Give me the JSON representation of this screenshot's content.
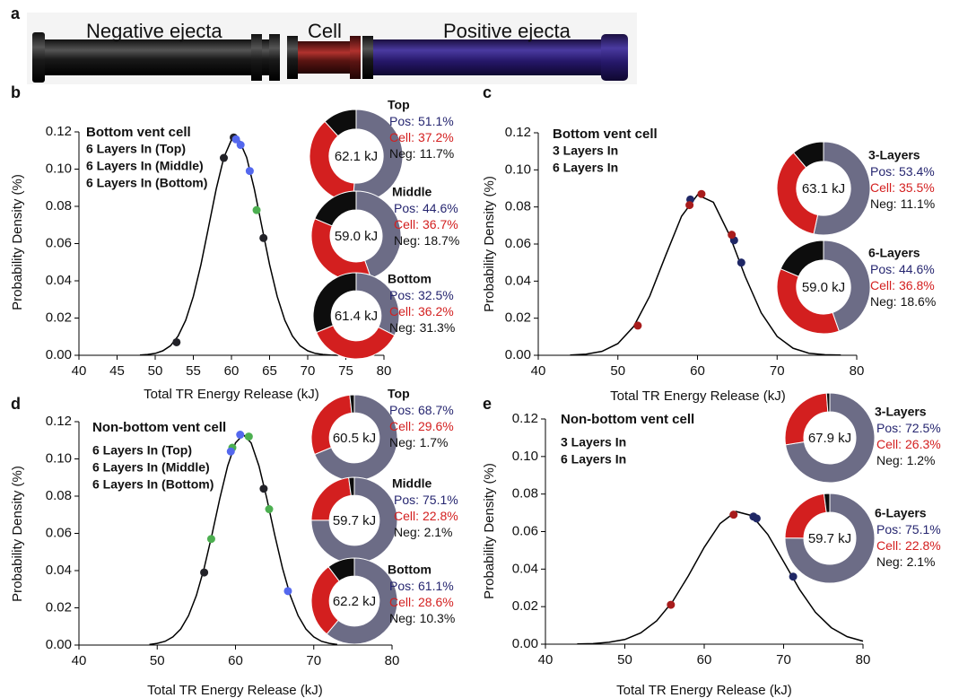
{
  "panel_a": {
    "label": "a",
    "negative": "Negative ejecta",
    "cell": "Cell",
    "positive": "Positive ejecta"
  },
  "chart_data": [
    {
      "panel": "b",
      "type": "line",
      "title": "Bottom vent cell",
      "xlabel": "Total TR Energy Release (kJ)",
      "ylabel": "Probability Density (%)",
      "xlim": [
        40,
        80
      ],
      "ylim": [
        0,
        0.12
      ],
      "xticks": [
        40,
        45,
        50,
        55,
        60,
        65,
        70,
        75,
        80
      ],
      "yticks": [
        {
          "value": 0,
          "label": "0.00"
        },
        0.02,
        0.04,
        0.06,
        0.08,
        {
          "value": 0.1,
          "label": "0.10"
        },
        0.12
      ],
      "curve": {
        "color": "#000000",
        "x": [
          48,
          49,
          50,
          51,
          52,
          53,
          54,
          55,
          56,
          57,
          58,
          59,
          60,
          61,
          62,
          63,
          64,
          65,
          66,
          67,
          68,
          69,
          70,
          71,
          72,
          73,
          74
        ],
        "values": [
          0.0001,
          0.0004,
          0.001,
          0.0024,
          0.0051,
          0.0103,
          0.0188,
          0.0316,
          0.0487,
          0.0689,
          0.0893,
          0.1062,
          0.1157,
          0.1157,
          0.1062,
          0.0893,
          0.0689,
          0.0487,
          0.0316,
          0.0188,
          0.0103,
          0.0051,
          0.0024,
          0.001,
          0.0004,
          0.0001,
          0
        ]
      },
      "series": [
        {
          "name": "6 Layers In (Top)",
          "color": "#4caf50",
          "x": [
            63.3
          ],
          "values": [
            0.078
          ]
        },
        {
          "name": "6 Layers In (Middle)",
          "color": "#222228",
          "x": [
            52.8,
            59.0,
            60.3,
            64.2
          ],
          "values": [
            0.007,
            0.106,
            0.117,
            0.063
          ]
        },
        {
          "name": "6 Layers In (Bottom)",
          "color": "#5468ee",
          "x": [
            60.6,
            61.2,
            62.4
          ],
          "values": [
            0.116,
            0.113,
            0.099
          ]
        }
      ],
      "donuts": [
        {
          "type": "pie",
          "title": "Top",
          "center_label": "62.1 kJ",
          "categories": [
            "Pos:",
            "Cell:",
            "Neg:"
          ],
          "values": [
            51.1,
            37.2,
            11.7
          ],
          "value_labels": [
            "51.1%",
            "37.2%",
            "11.7%"
          ],
          "colors": [
            "#6c6c86",
            "#d31f1f",
            "#0d0d0d"
          ],
          "label_colors": [
            "#262670",
            "#d31f1f",
            "#111111"
          ]
        },
        {
          "type": "pie",
          "title": "Middle",
          "center_label": "59.0 kJ",
          "categories": [
            "Pos:",
            "Cell:",
            "Neg:"
          ],
          "values": [
            44.6,
            36.7,
            18.7
          ],
          "value_labels": [
            "44.6%",
            "36.7%",
            "18.7%"
          ],
          "colors": [
            "#6c6c86",
            "#d31f1f",
            "#0d0d0d"
          ],
          "label_colors": [
            "#262670",
            "#d31f1f",
            "#111111"
          ]
        },
        {
          "type": "pie",
          "title": "Bottom",
          "center_label": "61.4 kJ",
          "categories": [
            "Pos:",
            "Cell:",
            "Neg:"
          ],
          "values": [
            32.5,
            36.2,
            31.3
          ],
          "value_labels": [
            "32.5%",
            "36.2%",
            "31.3%"
          ],
          "colors": [
            "#6c6c86",
            "#d31f1f",
            "#0d0d0d"
          ],
          "label_colors": [
            "#262670",
            "#d31f1f",
            "#111111"
          ]
        }
      ]
    },
    {
      "panel": "c",
      "type": "line",
      "title": "Bottom vent cell",
      "xlabel": "Total TR Energy Release (kJ)",
      "ylabel": "Probability Density (%)",
      "xlim": [
        40,
        80
      ],
      "ylim": [
        0,
        0.12
      ],
      "xticks": [
        40,
        50,
        60,
        70,
        80
      ],
      "yticks": [
        {
          "value": 0,
          "label": "0.00"
        },
        0.02,
        0.04,
        0.06,
        0.08,
        {
          "value": 0.1,
          "label": "0.10"
        },
        0.12
      ],
      "curve": {
        "color": "#000000",
        "x": [
          44,
          46,
          48,
          50,
          52,
          54,
          56,
          58,
          60,
          62,
          64,
          66,
          68,
          70,
          72,
          74,
          76,
          78
        ],
        "values": [
          0.0001,
          0.0006,
          0.0021,
          0.0063,
          0.0156,
          0.0319,
          0.0538,
          0.075,
          0.0865,
          0.0825,
          0.065,
          0.0424,
          0.0229,
          0.0102,
          0.0038,
          0.0011,
          0.0003,
          0.0001
        ]
      },
      "series": [
        {
          "name": "3 Layers In",
          "color": "#1f2766",
          "x": [
            59.1,
            64.6,
            65.5
          ],
          "values": [
            0.084,
            0.062,
            0.05
          ]
        },
        {
          "name": "6 Layers In",
          "color": "#a81c1c",
          "x": [
            52.5,
            59.0,
            60.5,
            64.3
          ],
          "values": [
            0.016,
            0.081,
            0.087,
            0.065
          ]
        }
      ],
      "donuts": [
        {
          "type": "pie",
          "title": "3-Layers",
          "center_label": "63.1 kJ",
          "categories": [
            "Pos:",
            "Cell:",
            "Neg:"
          ],
          "values": [
            53.4,
            35.5,
            11.1
          ],
          "value_labels": [
            "53.4%",
            "35.5%",
            "11.1%"
          ],
          "colors": [
            "#6c6c86",
            "#d31f1f",
            "#0d0d0d"
          ],
          "label_colors": [
            "#262670",
            "#d31f1f",
            "#111111"
          ]
        },
        {
          "type": "pie",
          "title": "6-Layers",
          "center_label": "59.0 kJ",
          "categories": [
            "Pos:",
            "Cell:",
            "Neg:"
          ],
          "values": [
            44.6,
            36.8,
            18.6
          ],
          "value_labels": [
            "44.6%",
            "36.8%",
            "18.6%"
          ],
          "colors": [
            "#6c6c86",
            "#d31f1f",
            "#0d0d0d"
          ],
          "label_colors": [
            "#262670",
            "#d31f1f",
            "#111111"
          ]
        }
      ]
    },
    {
      "panel": "d",
      "type": "line",
      "title": "Non-bottom vent cell",
      "xlabel": "Total TR Energy Release (kJ)",
      "ylabel": "Probability Density (%)",
      "xlim": [
        40,
        80
      ],
      "ylim": [
        0,
        0.12
      ],
      "xticks": [
        40,
        50,
        60,
        70,
        80
      ],
      "yticks": [
        {
          "value": 0,
          "label": "0.00"
        },
        0.02,
        0.04,
        0.06,
        0.08,
        {
          "value": 0.1,
          "label": "0.10"
        },
        0.12
      ],
      "curve": {
        "color": "#000000",
        "x": [
          49,
          50,
          51,
          52,
          53,
          54,
          55,
          56,
          57,
          58,
          59,
          60,
          61,
          62,
          63,
          64,
          65,
          66,
          67,
          68,
          69,
          70,
          71,
          72,
          73
        ],
        "values": [
          0.0003,
          0.0009,
          0.002,
          0.0044,
          0.0086,
          0.0158,
          0.0266,
          0.0414,
          0.0594,
          0.0788,
          0.0962,
          0.1086,
          0.113,
          0.1086,
          0.0962,
          0.0788,
          0.0594,
          0.0414,
          0.0266,
          0.0158,
          0.0086,
          0.0044,
          0.002,
          0.0009,
          0.0003
        ]
      },
      "series": [
        {
          "name": "6 Layers In (Top)",
          "color": "#4caf50",
          "x": [
            56.9,
            59.6,
            61.7,
            64.3
          ],
          "values": [
            0.057,
            0.106,
            0.112,
            0.073
          ]
        },
        {
          "name": "6 Layers In (Middle)",
          "color": "#222228",
          "x": [
            56.0,
            63.6
          ],
          "values": [
            0.039,
            0.084
          ]
        },
        {
          "name": "6 Layers In (Bottom)",
          "color": "#5468ee",
          "x": [
            59.4,
            60.6,
            66.7
          ],
          "values": [
            0.104,
            0.113,
            0.029
          ]
        }
      ],
      "donuts": [
        {
          "type": "pie",
          "title": "Top",
          "center_label": "60.5 kJ",
          "categories": [
            "Pos:",
            "Cell:",
            "Neg:"
          ],
          "values": [
            68.7,
            29.6,
            1.7
          ],
          "value_labels": [
            "68.7%",
            "29.6%",
            "1.7%"
          ],
          "colors": [
            "#6c6c86",
            "#d31f1f",
            "#0d0d0d"
          ],
          "label_colors": [
            "#262670",
            "#d31f1f",
            "#111111"
          ]
        },
        {
          "type": "pie",
          "title": "Middle",
          "center_label": "59.7 kJ",
          "categories": [
            "Pos:",
            "Cell:",
            "Neg:"
          ],
          "values": [
            75.1,
            22.8,
            2.1
          ],
          "value_labels": [
            "75.1%",
            "22.8%",
            "2.1%"
          ],
          "colors": [
            "#6c6c86",
            "#d31f1f",
            "#0d0d0d"
          ],
          "label_colors": [
            "#262670",
            "#d31f1f",
            "#111111"
          ]
        },
        {
          "type": "pie",
          "title": "Bottom",
          "center_label": "62.2 kJ",
          "categories": [
            "Pos:",
            "Cell:",
            "Neg:"
          ],
          "values": [
            61.1,
            28.6,
            10.3
          ],
          "value_labels": [
            "61.1%",
            "28.6%",
            "10.3%"
          ],
          "colors": [
            "#6c6c86",
            "#d31f1f",
            "#0d0d0d"
          ],
          "label_colors": [
            "#262670",
            "#d31f1f",
            "#111111"
          ]
        }
      ]
    },
    {
      "panel": "e",
      "type": "line",
      "title": "Non-bottom vent cell",
      "xlabel": "Total TR Energy Release (kJ)",
      "ylabel": "Probability Density (%)",
      "xlim": [
        40,
        80
      ],
      "ylim": [
        0,
        0.12
      ],
      "xticks": [
        40,
        50,
        60,
        70,
        80
      ],
      "yticks": [
        {
          "value": 0,
          "label": "0.00"
        },
        0.02,
        0.04,
        0.06,
        0.08,
        {
          "value": 0.1,
          "label": "0.10"
        },
        0.12
      ],
      "curve": {
        "color": "#000000",
        "x": [
          44,
          46,
          48,
          50,
          52,
          54,
          56,
          58,
          60,
          62,
          64,
          66,
          68,
          70,
          72,
          74,
          76,
          78,
          80
        ],
        "values": [
          0.0001,
          0.0003,
          0.001,
          0.0025,
          0.006,
          0.0124,
          0.0226,
          0.0364,
          0.0516,
          0.0643,
          0.0707,
          0.0685,
          0.0585,
          0.044,
          0.0292,
          0.017,
          0.0088,
          0.004,
          0.0016
        ]
      },
      "series": [
        {
          "name": "3 Layers In",
          "color": "#1f2766",
          "x": [
            66.2,
            66.6,
            71.2
          ],
          "values": [
            0.068,
            0.067,
            0.036
          ]
        },
        {
          "name": "6 Layers In",
          "color": "#a81c1c",
          "x": [
            55.8,
            63.7
          ],
          "values": [
            0.021,
            0.069
          ]
        }
      ],
      "donuts": [
        {
          "type": "pie",
          "title": "3-Layers",
          "center_label": "67.9 kJ",
          "categories": [
            "Pos:",
            "Cell:",
            "Neg:"
          ],
          "values": [
            72.5,
            26.3,
            1.2
          ],
          "value_labels": [
            "72.5%",
            "26.3%",
            "1.2%"
          ],
          "colors": [
            "#6c6c86",
            "#d31f1f",
            "#0d0d0d"
          ],
          "label_colors": [
            "#262670",
            "#d31f1f",
            "#111111"
          ]
        },
        {
          "type": "pie",
          "title": "6-Layers",
          "center_label": "59.7 kJ",
          "categories": [
            "Pos:",
            "Cell:",
            "Neg:"
          ],
          "values": [
            75.1,
            22.8,
            2.1
          ],
          "value_labels": [
            "75.1%",
            "22.8%",
            "2.1%"
          ],
          "colors": [
            "#6c6c86",
            "#d31f1f",
            "#0d0d0d"
          ],
          "label_colors": [
            "#262670",
            "#d31f1f",
            "#111111"
          ]
        }
      ]
    }
  ]
}
